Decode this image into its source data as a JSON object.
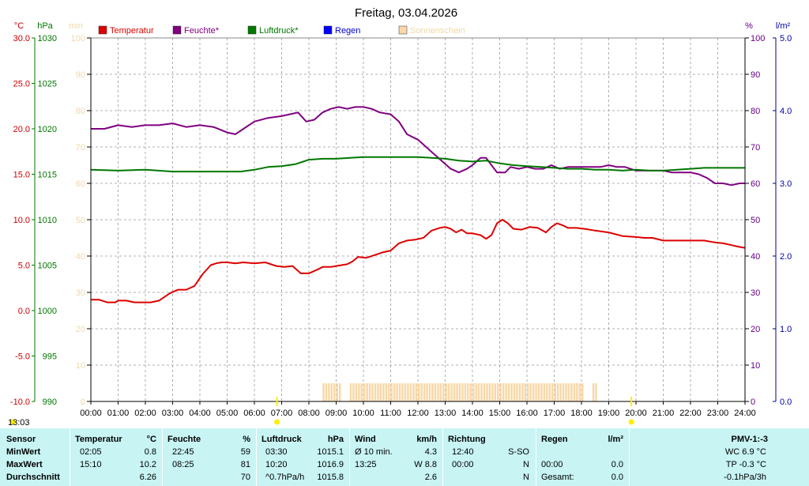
{
  "chart_data": {
    "type": "line",
    "title": "Freitag, 03.04.2026",
    "time_start_label": "13:03",
    "x_ticks": [
      "00:00",
      "01:00",
      "02:00",
      "03:00",
      "04:00",
      "05:00",
      "06:00",
      "07:00",
      "08:00",
      "09:00",
      "10:00",
      "11:00",
      "12:00",
      "13:00",
      "14:00",
      "15:00",
      "16:00",
      "17:00",
      "18:00",
      "19:00",
      "20:00",
      "21:00",
      "22:00",
      "23:00",
      "24:00"
    ],
    "axes": {
      "temperature": {
        "unit": "°C",
        "ylim": [
          -10,
          30
        ],
        "ticks": [
          "30.0",
          "25.0",
          "20.0",
          "15.0",
          "10.0",
          "5.0",
          "0.0",
          "-5.0",
          "-10.0"
        ],
        "color": "#cc0000"
      },
      "pressure": {
        "unit": "hPa",
        "ylim": [
          990,
          1030
        ],
        "ticks": [
          "1030",
          "1025",
          "1020",
          "1015",
          "1010",
          "1005",
          "1000",
          "995",
          "990"
        ],
        "color": "#007700"
      },
      "sunshine": {
        "unit": "min",
        "ylim": [
          0,
          100
        ],
        "ticks": [
          "100",
          "90",
          "80",
          "70",
          "60",
          "50",
          "40",
          "30",
          "20",
          "10",
          "0"
        ],
        "color": "#f0d8a8"
      },
      "humidity": {
        "unit": "%",
        "ylim": [
          0,
          100
        ],
        "ticks": [
          "100",
          "90",
          "80",
          "70",
          "60",
          "50",
          "40",
          "30",
          "20",
          "10",
          "0"
        ],
        "color": "#660088"
      },
      "rain": {
        "unit": "l/m²",
        "ylim": [
          0,
          5
        ],
        "ticks": [
          "5.0",
          "4.0",
          "3.0",
          "2.0",
          "1.0",
          "0.0"
        ],
        "color": "#0000aa"
      }
    },
    "legend": [
      {
        "label": "Temperatur",
        "color": "#dd0000"
      },
      {
        "label": "Feuchte*",
        "color": "#800080"
      },
      {
        "label": "Luftdruck*",
        "color": "#007700"
      },
      {
        "label": "Regen",
        "color": "#0000ff"
      },
      {
        "label": "Sonnenschein",
        "color": "#f8d8a8"
      }
    ],
    "series": [
      {
        "name": "Temperatur",
        "axis": "temperature",
        "color": "#dd0000",
        "x": [
          0,
          0.3,
          0.6,
          0.9,
          1.0,
          1.3,
          1.6,
          1.9,
          2.2,
          2.5,
          2.9,
          3.2,
          3.5,
          3.8,
          4.1,
          4.4,
          4.6,
          4.8,
          5.0,
          5.3,
          5.6,
          6.0,
          6.4,
          6.8,
          7.1,
          7.4,
          7.7,
          8.0,
          8.3,
          8.5,
          8.8,
          9.0,
          9.4,
          9.6,
          9.8,
          10.1,
          10.4,
          10.7,
          11.0,
          11.3,
          11.6,
          11.9,
          12.2,
          12.5,
          12.8,
          13.0,
          13.2,
          13.4,
          13.6,
          13.8,
          14.0,
          14.3,
          14.5,
          14.7,
          14.9,
          15.1,
          15.3,
          15.5,
          15.8,
          16.1,
          16.4,
          16.7,
          16.9,
          17.1,
          17.3,
          17.5,
          17.8,
          18.1,
          18.5,
          19.0,
          19.5,
          20.0,
          20.3,
          20.6,
          21.0,
          21.5,
          22.0,
          22.5,
          22.9,
          23.2,
          23.5,
          23.8,
          24.0
        ],
        "values": [
          1.2,
          1.2,
          0.9,
          0.9,
          1.1,
          1.1,
          0.9,
          0.9,
          0.9,
          1.1,
          1.9,
          2.3,
          2.3,
          2.7,
          4.0,
          5.0,
          5.2,
          5.3,
          5.3,
          5.2,
          5.3,
          5.2,
          5.3,
          4.9,
          4.8,
          4.9,
          4.1,
          4.1,
          4.5,
          4.8,
          4.8,
          4.9,
          5.1,
          5.4,
          5.9,
          5.8,
          6.1,
          6.4,
          6.6,
          7.4,
          7.7,
          7.8,
          8.0,
          8.8,
          9.1,
          9.2,
          9.0,
          8.6,
          8.9,
          8.5,
          8.5,
          8.3,
          7.9,
          8.3,
          9.6,
          10.0,
          9.6,
          9.0,
          8.9,
          9.2,
          9.1,
          8.6,
          9.2,
          9.6,
          9.4,
          9.1,
          9.1,
          9.0,
          8.8,
          8.6,
          8.2,
          8.1,
          8.0,
          8.0,
          7.7,
          7.7,
          7.7,
          7.7,
          7.5,
          7.4,
          7.2,
          7.0,
          6.9
        ]
      },
      {
        "name": "Feuchte*",
        "axis": "humidity",
        "color": "#800080",
        "x": [
          0,
          0.5,
          1.0,
          1.5,
          2.0,
          2.5,
          3.0,
          3.5,
          4.0,
          4.5,
          5.0,
          5.3,
          5.6,
          6.0,
          6.5,
          7.0,
          7.3,
          7.6,
          7.9,
          8.2,
          8.5,
          8.8,
          9.1,
          9.4,
          9.7,
          10.0,
          10.3,
          10.6,
          11.0,
          11.3,
          11.6,
          12.0,
          12.3,
          12.6,
          12.9,
          13.2,
          13.5,
          13.8,
          14.0,
          14.3,
          14.5,
          14.7,
          14.9,
          15.2,
          15.4,
          15.7,
          16.0,
          16.3,
          16.6,
          16.9,
          17.2,
          17.5,
          17.8,
          18.1,
          18.4,
          18.7,
          19.0,
          19.3,
          19.6,
          20.0,
          20.3,
          20.6,
          21.0,
          21.3,
          21.6,
          22.0,
          22.3,
          22.6,
          22.9,
          23.2,
          23.5,
          23.8,
          24.0
        ],
        "values": [
          75,
          75,
          76,
          75.5,
          76,
          76,
          76.5,
          75.5,
          76,
          75.5,
          74,
          73.5,
          75,
          77,
          78,
          78.5,
          79,
          79.5,
          77,
          77.5,
          79.5,
          80.5,
          81,
          80.5,
          81,
          81,
          80.5,
          79.5,
          79,
          77,
          73.5,
          72,
          70,
          68,
          66,
          64,
          63,
          64,
          65,
          67,
          67,
          65,
          63,
          63,
          64.5,
          64,
          64.5,
          64,
          64,
          65,
          64,
          64.5,
          64.5,
          64.5,
          64.5,
          64.5,
          65,
          64.5,
          64.5,
          63.5,
          63.5,
          63.5,
          63.5,
          63,
          63,
          63,
          62.5,
          61.5,
          60,
          60,
          59.5,
          60,
          60
        ]
      },
      {
        "name": "Luftdruck*",
        "axis": "pressure",
        "color": "#007700",
        "x": [
          0,
          1.0,
          2.0,
          3.0,
          4.0,
          5.0,
          5.5,
          6.0,
          6.5,
          7.0,
          7.5,
          8.0,
          8.5,
          9.0,
          9.5,
          10.0,
          10.5,
          11.0,
          11.5,
          12.0,
          12.5,
          13.0,
          13.5,
          14.0,
          14.5,
          15.0,
          15.5,
          16.0,
          16.5,
          17.0,
          17.5,
          18.0,
          18.5,
          19.0,
          19.5,
          20.0,
          20.5,
          21.0,
          21.5,
          22.0,
          22.5,
          23.0,
          23.5,
          24.0
        ],
        "values": [
          1015.5,
          1015.4,
          1015.5,
          1015.3,
          1015.3,
          1015.3,
          1015.3,
          1015.5,
          1015.8,
          1015.9,
          1016.1,
          1016.6,
          1016.7,
          1016.7,
          1016.8,
          1016.9,
          1016.9,
          1016.9,
          1016.9,
          1016.9,
          1016.8,
          1016.7,
          1016.5,
          1016.4,
          1016.5,
          1016.2,
          1016.0,
          1015.9,
          1015.8,
          1015.7,
          1015.6,
          1015.6,
          1015.5,
          1015.5,
          1015.4,
          1015.5,
          1015.4,
          1015.4,
          1015.5,
          1015.6,
          1015.7,
          1015.7,
          1015.7,
          1015.7
        ]
      },
      {
        "name": "Sonnenschein",
        "axis": "sunshine",
        "color": "#f8d8a8",
        "x": [
          8.5,
          8.6,
          8.7,
          8.8,
          8.9,
          9.0,
          9.1,
          9.5,
          9.6,
          9.7,
          9.8,
          9.9,
          10.0,
          10.1,
          10.2,
          10.3,
          10.4,
          10.5,
          10.6,
          10.7,
          10.8,
          10.9,
          11.0,
          11.1,
          11.2,
          11.3,
          11.4,
          11.5,
          11.6,
          11.7,
          11.8,
          11.9,
          12.0,
          12.1,
          12.2,
          12.3,
          12.4,
          12.5,
          12.6,
          12.7,
          12.8,
          12.9,
          13.0,
          13.1,
          13.2,
          13.3,
          13.4,
          13.5,
          13.6,
          13.7,
          13.8,
          13.9,
          14.0,
          14.1,
          14.2,
          14.3,
          14.4,
          14.5,
          14.6,
          14.7,
          14.8,
          14.9,
          15.0,
          15.1,
          15.2,
          15.3,
          15.4,
          15.5,
          15.6,
          15.7,
          15.8,
          15.9,
          16.0,
          16.1,
          16.2,
          16.3,
          16.4,
          16.5,
          16.6,
          16.7,
          16.8,
          16.9,
          17.0,
          17.1,
          17.2,
          17.3,
          17.4,
          17.5,
          17.6,
          17.7,
          17.8,
          17.9,
          18.0,
          18.4,
          18.5
        ],
        "values": [
          5,
          5,
          5,
          5,
          5,
          5,
          5,
          5,
          5,
          5,
          5,
          5,
          5,
          5,
          5,
          5,
          5,
          5,
          5,
          5,
          5,
          5,
          5,
          5,
          5,
          5,
          5,
          5,
          5,
          5,
          5,
          5,
          5,
          5,
          5,
          5,
          5,
          5,
          5,
          5,
          5,
          5,
          5,
          5,
          5,
          5,
          5,
          5,
          5,
          5,
          5,
          5,
          5,
          5,
          5,
          5,
          5,
          5,
          5,
          5,
          5,
          5,
          5,
          5,
          5,
          5,
          5,
          5,
          5,
          5,
          5,
          5,
          5,
          5,
          5,
          5,
          5,
          5,
          5,
          5,
          5,
          5,
          5,
          5,
          5,
          5,
          5,
          5,
          5,
          5,
          5,
          5,
          5,
          5,
          5
        ]
      }
    ],
    "markers": [
      {
        "x": 6.83,
        "color": "#ffee00"
      },
      {
        "x": 19.83,
        "color": "#ffee00"
      }
    ],
    "grid": true
  },
  "table": {
    "headers": {
      "sensor": "Sensor",
      "temp": "Temperatur",
      "temp_unit": "°C",
      "hum": "Feuchte",
      "hum_unit": "%",
      "press": "Luftdruck",
      "press_unit": "hPa",
      "wind": "Wind",
      "wind_unit": "km/h",
      "dir": "Richtung",
      "rain": "Regen",
      "rain_unit": "l/m²",
      "pmv": "PMV-1:-3"
    },
    "rows": [
      {
        "label": "MinWert",
        "temp_time": "02:05",
        "temp_val": "0.8",
        "hum_time": "22:45",
        "hum_val": "59",
        "press_time": "03:30",
        "press_val": "1015.1",
        "wind_label": "Ø 10 min.",
        "wind_val": "4.3",
        "dir_time": "12:40",
        "dir_val": "S-SO",
        "rain_time": "",
        "rain_val": "",
        "pmv": "WC 6.9 °C"
      },
      {
        "label": "MaxWert",
        "temp_time": "15:10",
        "temp_val": "10.2",
        "hum_time": "08:25",
        "hum_val": "81",
        "press_time": "10:20",
        "press_val": "1016.9",
        "wind_label": "13:25",
        "wind_val": "W 8.8",
        "dir_time": "00:00",
        "dir_val": "N",
        "rain_time": "00:00",
        "rain_val": "0.0",
        "pmv": "TP -0.3 °C"
      },
      {
        "label": "Durchschnitt",
        "temp_time": "",
        "temp_val": "6.26",
        "hum_time": "",
        "hum_val": "70",
        "press_time": "^0.7hPa/h",
        "press_val": "1015.8",
        "wind_label": "",
        "wind_val": "2.6",
        "dir_time": "",
        "dir_val": "N",
        "rain_time": "Gesamt:",
        "rain_val": "0.0",
        "pmv": "-0.1hPa/3h"
      }
    ]
  }
}
